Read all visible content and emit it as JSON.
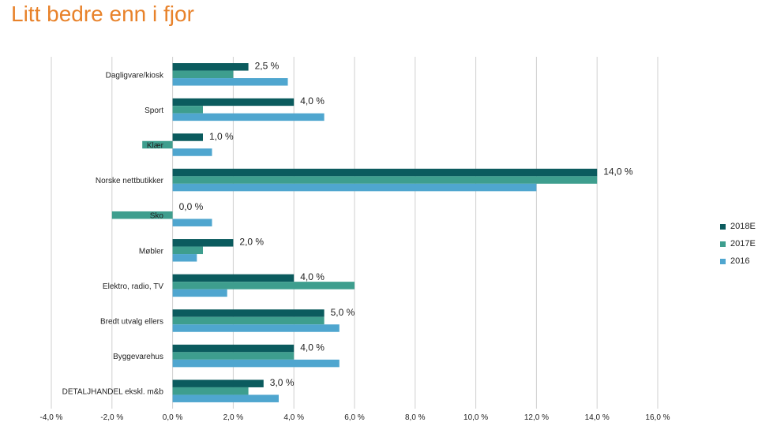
{
  "page": {
    "title": "Litt bedre enn i fjor"
  },
  "chart_data": {
    "type": "bar",
    "orientation": "horizontal",
    "categories": [
      "Dagligvare/kiosk",
      "Sport",
      "Klær",
      "Norske nettbutikker",
      "Sko",
      "Møbler",
      "Elektro, radio, TV",
      "Bredt utvalg ellers",
      "Byggevarehus",
      "DETALJHANDEL ekskl. m&b"
    ],
    "series": [
      {
        "name": "2018E",
        "color": "#0B5B5E",
        "values": [
          2.5,
          4.0,
          1.0,
          14.0,
          0.0,
          2.0,
          4.0,
          5.0,
          4.0,
          3.0
        ]
      },
      {
        "name": "2017E",
        "color": "#3E9E8E",
        "values": [
          2.0,
          1.0,
          -1.0,
          14.0,
          -2.0,
          1.0,
          6.0,
          5.0,
          4.0,
          2.5
        ]
      },
      {
        "name": "2016",
        "color": "#4FA6CF",
        "values": [
          3.8,
          5.0,
          1.3,
          12.0,
          1.3,
          0.8,
          1.8,
          5.5,
          5.5,
          3.5
        ]
      }
    ],
    "data_labels": {
      "series": "2018E",
      "labels": [
        "2,5 %",
        "4,0 %",
        "1,0 %",
        "14,0 %",
        "0,0 %",
        "2,0 %",
        "4,0 %",
        "5,0 %",
        "4,0 %",
        "3,0 %"
      ]
    },
    "xlim": [
      -4,
      16
    ],
    "xticks": [
      -4,
      -2,
      0,
      2,
      4,
      6,
      8,
      10,
      12,
      14,
      16
    ],
    "xtick_labels": [
      "-4,0 %",
      "-2,0 %",
      "0,0 %",
      "2,0 %",
      "4,0 %",
      "6,0 %",
      "8,0 %",
      "10,0 %",
      "12,0 %",
      "14,0 %",
      "16,0 %"
    ],
    "grid": "vertical",
    "legend_position": "right",
    "legend": [
      "2018E",
      "2017E",
      "2016"
    ],
    "title": "",
    "xlabel": "",
    "ylabel": ""
  }
}
